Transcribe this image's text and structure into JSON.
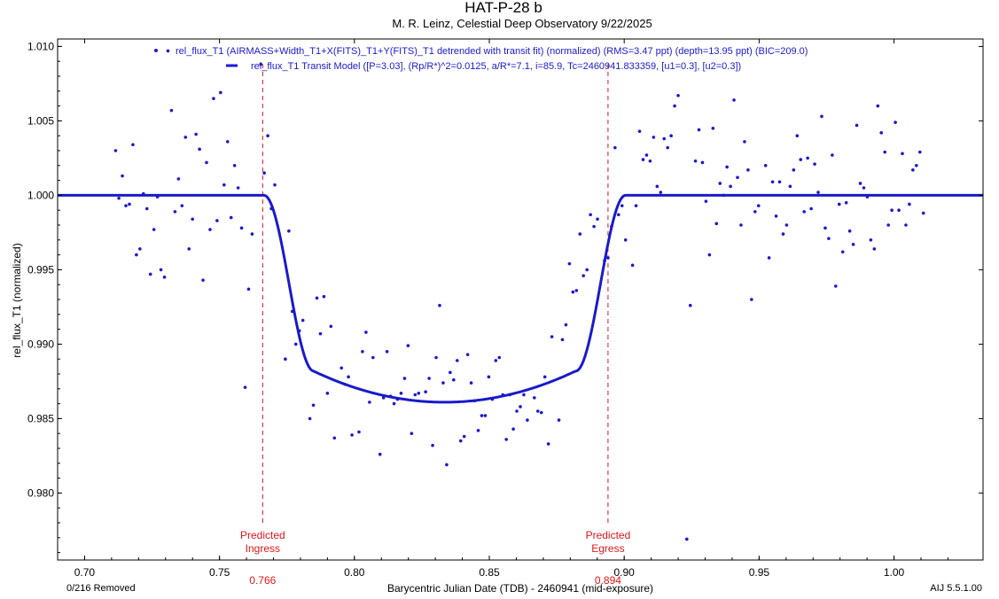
{
  "chart_data": {
    "type": "scatter",
    "title": "HAT-P-28 b",
    "subtitle": "M. R. Leinz, Celestial Deep Observatory 9/22/2025",
    "xlabel": "Barycentric Julian Date (TDB) - 2460941 (mid-exposure)",
    "ylabel": "rel_flux_T1 (normalized)",
    "xlim": [
      0.69,
      1.033
    ],
    "ylim": [
      0.9755,
      1.0105
    ],
    "x_ticks": [
      "0.70",
      "0.75",
      "0.80",
      "0.85",
      "0.90",
      "0.95",
      "1.00"
    ],
    "y_ticks": [
      "0.980",
      "0.985",
      "0.990",
      "0.995",
      "1.000",
      "1.005",
      "1.010"
    ],
    "grid": false,
    "legend_position": "top-center",
    "colors": {
      "data": "#1a1acc",
      "model": "#1a1acc",
      "markers": "#e0161b"
    },
    "legend": [
      "rel_flux_T1 (AIRMASS+Width_T1+X(FITS)_T1+Y(FITS)_T1 detrended with transit fit) (normalized) (RMS=3.47 ppt) (depth=13.95 ppt) (BIC=209.0)",
      "rel_flux_T1 Transit Model ([P=3.03], (Rp/R*)^2=0.0125, a/R*=7.1, i=85.9, Tc=2460941.833359, [u1=0.3], [u2=0.3])"
    ],
    "model": {
      "depth": 0.0139,
      "ingress_start": 0.7665,
      "flat_start": 0.785,
      "flat_end": 0.882,
      "egress_end": 0.9005,
      "center": 0.8334
    },
    "markers": [
      {
        "label_line1": "Predicted",
        "label_line2": "Ingress",
        "value": "0.766",
        "x": 0.766
      },
      {
        "label_line1": "Predicted",
        "label_line2": "Egress",
        "value": "0.894",
        "x": 0.894
      }
    ],
    "series": [
      {
        "name": "rel_flux_T1 (normalized)",
        "points": [
          [
            0.7115,
            1.003
          ],
          [
            0.7127,
            0.9998
          ],
          [
            0.714,
            1.0013
          ],
          [
            0.7153,
            0.9993
          ],
          [
            0.7166,
            0.9994
          ],
          [
            0.7179,
            1.0034
          ],
          [
            0.7192,
            0.996
          ],
          [
            0.7205,
            0.9964
          ],
          [
            0.7218,
            1.0001
          ],
          [
            0.7231,
            0.9991
          ],
          [
            0.7244,
            0.9947
          ],
          [
            0.7257,
            0.9977
          ],
          [
            0.727,
            0.9999
          ],
          [
            0.7283,
            0.995
          ],
          [
            0.7296,
            0.9945
          ],
          [
            0.7309,
            1.0097
          ],
          [
            0.7322,
            1.0057
          ],
          [
            0.7335,
            0.9989
          ],
          [
            0.7348,
            1.0011
          ],
          [
            0.7361,
            0.9993
          ],
          [
            0.7374,
            1.0039
          ],
          [
            0.7387,
            0.9964
          ],
          [
            0.74,
            0.9984
          ],
          [
            0.7413,
            1.0041
          ],
          [
            0.7426,
            1.0031
          ],
          [
            0.7439,
            0.9943
          ],
          [
            0.7452,
            1.0022
          ],
          [
            0.7465,
            0.9977
          ],
          [
            0.7478,
            1.0065
          ],
          [
            0.7491,
            0.9983
          ],
          [
            0.7504,
            1.0069
          ],
          [
            0.7517,
            1.0007
          ],
          [
            0.753,
            1.0036
          ],
          [
            0.7543,
            0.9985
          ],
          [
            0.7556,
            1.002
          ],
          [
            0.7569,
            1.0005
          ],
          [
            0.7582,
            0.9978
          ],
          [
            0.7595,
            0.9871
          ],
          [
            0.7608,
            0.9937
          ],
          [
            0.7621,
            0.9974
          ],
          [
            0.7653,
            1.0088
          ],
          [
            0.7666,
            1.0015
          ],
          [
            0.7679,
            1.004
          ],
          [
            0.7692,
            0.9991
          ],
          [
            0.7705,
            1.0007
          ],
          [
            0.7744,
            0.989
          ],
          [
            0.7757,
            0.9976
          ],
          [
            0.777,
            0.9922
          ],
          [
            0.7783,
            0.99
          ],
          [
            0.7796,
            0.9909
          ],
          [
            0.7809,
            0.9916
          ],
          [
            0.7835,
            0.985
          ],
          [
            0.7848,
            0.9859
          ],
          [
            0.7861,
            0.9931
          ],
          [
            0.7874,
            0.9907
          ],
          [
            0.7887,
            0.9932
          ],
          [
            0.79,
            0.9867
          ],
          [
            0.7913,
            0.9912
          ],
          [
            0.7926,
            0.9837
          ],
          [
            0.7952,
            0.9884
          ],
          [
            0.7965,
            0.9873
          ],
          [
            0.7978,
            0.9878
          ],
          [
            0.7991,
            0.9839
          ],
          [
            0.8017,
            0.9841
          ],
          [
            0.803,
            0.9895
          ],
          [
            0.8043,
            0.9908
          ],
          [
            0.8056,
            0.9861
          ],
          [
            0.8069,
            0.9891
          ],
          [
            0.8095,
            0.9826
          ],
          [
            0.8108,
            0.9864
          ],
          [
            0.8121,
            0.9895
          ],
          [
            0.8134,
            0.9865
          ],
          [
            0.8147,
            0.986
          ],
          [
            0.816,
            0.9863
          ],
          [
            0.8173,
            0.9867
          ],
          [
            0.8186,
            0.9877
          ],
          [
            0.8199,
            0.9899
          ],
          [
            0.8212,
            0.984
          ],
          [
            0.8225,
            0.9866
          ],
          [
            0.8238,
            0.9867
          ],
          [
            0.8264,
            0.9868
          ],
          [
            0.8277,
            0.9877
          ],
          [
            0.829,
            0.9832
          ],
          [
            0.8303,
            0.9891
          ],
          [
            0.8316,
            0.9926
          ],
          [
            0.8329,
            0.9874
          ],
          [
            0.8342,
            0.9819
          ],
          [
            0.8355,
            0.9881
          ],
          [
            0.8368,
            0.9876
          ],
          [
            0.8381,
            0.9889
          ],
          [
            0.8394,
            0.9835
          ],
          [
            0.8407,
            0.9838
          ],
          [
            0.842,
            0.9893
          ],
          [
            0.8433,
            0.9874
          ],
          [
            0.8446,
            0.9862
          ],
          [
            0.8459,
            0.9842
          ],
          [
            0.8472,
            0.9852
          ],
          [
            0.8485,
            0.9852
          ],
          [
            0.8498,
            0.9878
          ],
          [
            0.8511,
            0.9863
          ],
          [
            0.8524,
            0.9889
          ],
          [
            0.8537,
            0.9891
          ],
          [
            0.855,
            0.9866
          ],
          [
            0.8563,
            0.9836
          ],
          [
            0.8576,
            0.9866
          ],
          [
            0.8589,
            0.9843
          ],
          [
            0.8602,
            0.9855
          ],
          [
            0.8615,
            0.9858
          ],
          [
            0.8628,
            0.9866
          ],
          [
            0.8641,
            0.9849
          ],
          [
            0.8667,
            0.9864
          ],
          [
            0.868,
            0.9855
          ],
          [
            0.8693,
            0.9854
          ],
          [
            0.8706,
            0.9878
          ],
          [
            0.8719,
            0.9833
          ],
          [
            0.8732,
            0.9905
          ],
          [
            0.8758,
            0.9849
          ],
          [
            0.8771,
            0.9903
          ],
          [
            0.8784,
            0.9913
          ],
          [
            0.8797,
            0.9954
          ],
          [
            0.881,
            0.9935
          ],
          [
            0.8823,
            0.9936
          ],
          [
            0.8836,
            0.9974
          ],
          [
            0.8849,
            0.9946
          ],
          [
            0.8862,
            0.995
          ],
          [
            0.8875,
            0.9987
          ],
          [
            0.8888,
            0.9979
          ],
          [
            0.8901,
            0.9984
          ],
          [
            0.8927,
            0.9956
          ],
          [
            0.894,
            0.9958
          ],
          [
            0.8953,
            0.9979
          ],
          [
            0.8966,
            1.0032
          ],
          [
            0.8979,
            0.9987
          ],
          [
            0.8992,
            0.9993
          ],
          [
            0.9005,
            0.997
          ],
          [
            0.9031,
            0.9953
          ],
          [
            0.9044,
            0.9993
          ],
          [
            0.9057,
            1.0043
          ],
          [
            0.907,
            1.0024
          ],
          [
            0.9083,
            1.0027
          ],
          [
            0.9096,
            1.0023
          ],
          [
            0.9109,
            1.0039
          ],
          [
            0.9122,
            1.0006
          ],
          [
            0.9135,
            1.0002
          ],
          [
            0.9148,
            1.0038
          ],
          [
            0.9161,
            1.0032
          ],
          [
            0.9174,
            1.004
          ],
          [
            0.9187,
            1.006
          ],
          [
            0.92,
            1.0067
          ],
          [
            0.9232,
            0.9769
          ],
          [
            0.9245,
            0.9926
          ],
          [
            0.9264,
            1.0023
          ],
          [
            0.9277,
            1.0044
          ],
          [
            0.929,
            1.0022
          ],
          [
            0.9303,
            0.9996
          ],
          [
            0.9316,
            0.996
          ],
          [
            0.9329,
            1.0045
          ],
          [
            0.9342,
            0.9981
          ],
          [
            0.9355,
            1.0008
          ],
          [
            0.9368,
            1.0
          ],
          [
            0.9381,
            1.0019
          ],
          [
            0.9394,
            1.0006
          ],
          [
            0.9407,
            1.0064
          ],
          [
            0.942,
            1.0012
          ],
          [
            0.9433,
            0.998
          ],
          [
            0.9446,
            1.0036
          ],
          [
            0.9459,
            1.0017
          ],
          [
            0.9472,
            0.993
          ],
          [
            0.9485,
            0.9989
          ],
          [
            0.9498,
            0.9993
          ],
          [
            0.9524,
            1.002
          ],
          [
            0.9537,
            0.9958
          ],
          [
            0.955,
            1.0009
          ],
          [
            0.9563,
            0.9986
          ],
          [
            0.9576,
            1.0009
          ],
          [
            0.9589,
            0.9974
          ],
          [
            0.9602,
            0.998
          ],
          [
            0.9615,
            1.0006
          ],
          [
            0.9628,
            1.0017
          ],
          [
            0.9641,
            1.004
          ],
          [
            0.9654,
            1.0024
          ],
          [
            0.9667,
            0.9989
          ],
          [
            0.968,
            1.0025
          ],
          [
            0.9693,
            0.9991
          ],
          [
            0.9706,
            1.0021
          ],
          [
            0.9719,
            1.0002
          ],
          [
            0.9732,
            1.0053
          ],
          [
            0.9745,
            0.9978
          ],
          [
            0.9758,
            0.9971
          ],
          [
            0.9771,
            1.0027
          ],
          [
            0.9784,
            0.9939
          ],
          [
            0.9797,
            0.9994
          ],
          [
            0.981,
            0.9962
          ],
          [
            0.9823,
            0.9995
          ],
          [
            0.9836,
            0.9976
          ],
          [
            0.9849,
            0.9967
          ],
          [
            0.9862,
            1.0047
          ],
          [
            0.9875,
            1.0008
          ],
          [
            0.9888,
            1.0005
          ],
          [
            0.9901,
            0.9999
          ],
          [
            0.9914,
            0.997
          ],
          [
            0.9927,
            0.9964
          ],
          [
            0.994,
            1.006
          ],
          [
            0.9953,
            1.0042
          ],
          [
            0.9966,
            1.0029
          ],
          [
            0.9979,
            0.998
          ],
          [
            0.9992,
            0.999
          ],
          [
            1.0005,
            1.0049
          ],
          [
            1.0018,
            0.999
          ],
          [
            1.0031,
            1.0028
          ],
          [
            1.0044,
            0.998
          ],
          [
            1.0057,
            0.9994
          ],
          [
            1.007,
            1.0017
          ],
          [
            1.0083,
            1.002
          ],
          [
            1.0096,
            1.0029
          ],
          [
            1.0109,
            0.9988
          ]
        ]
      }
    ]
  },
  "footer": {
    "left": "0/216 Removed",
    "right": "AIJ 5.5.1.00"
  }
}
